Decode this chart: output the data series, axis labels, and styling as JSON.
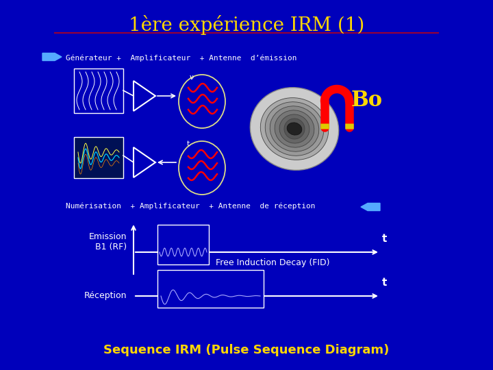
{
  "background_color": "#0000BB",
  "title": "1ère expérience IRM (1)",
  "title_color": "#FFD700",
  "title_fontsize": 20,
  "separator_color": "#990033",
  "top_label": "Générateur +  Amplificateur  + Antenne  d’émission",
  "top_label_color": "#FFFFFF",
  "bottom_label": "Numérisation  + Amplificateur  + Antenne  de réception",
  "bottom_label_color": "#FFFFFF",
  "bo_text": "Bo",
  "bo_color": "#FFD700",
  "emission_label": "Emission\nB1 (RF)",
  "reception_label": "Réception",
  "fid_label": "Free Induction Decay (FID)",
  "t_label": "t",
  "sequence_label": "Sequence IRM (Pulse Sequence Diagram)",
  "sequence_color": "#FFD700",
  "arrow_color": "#55AAFF",
  "white": "#FFFFFF",
  "yellow": "#FFFF00",
  "red": "#FF0000",
  "light_blue_signal": "#AAAAFF"
}
